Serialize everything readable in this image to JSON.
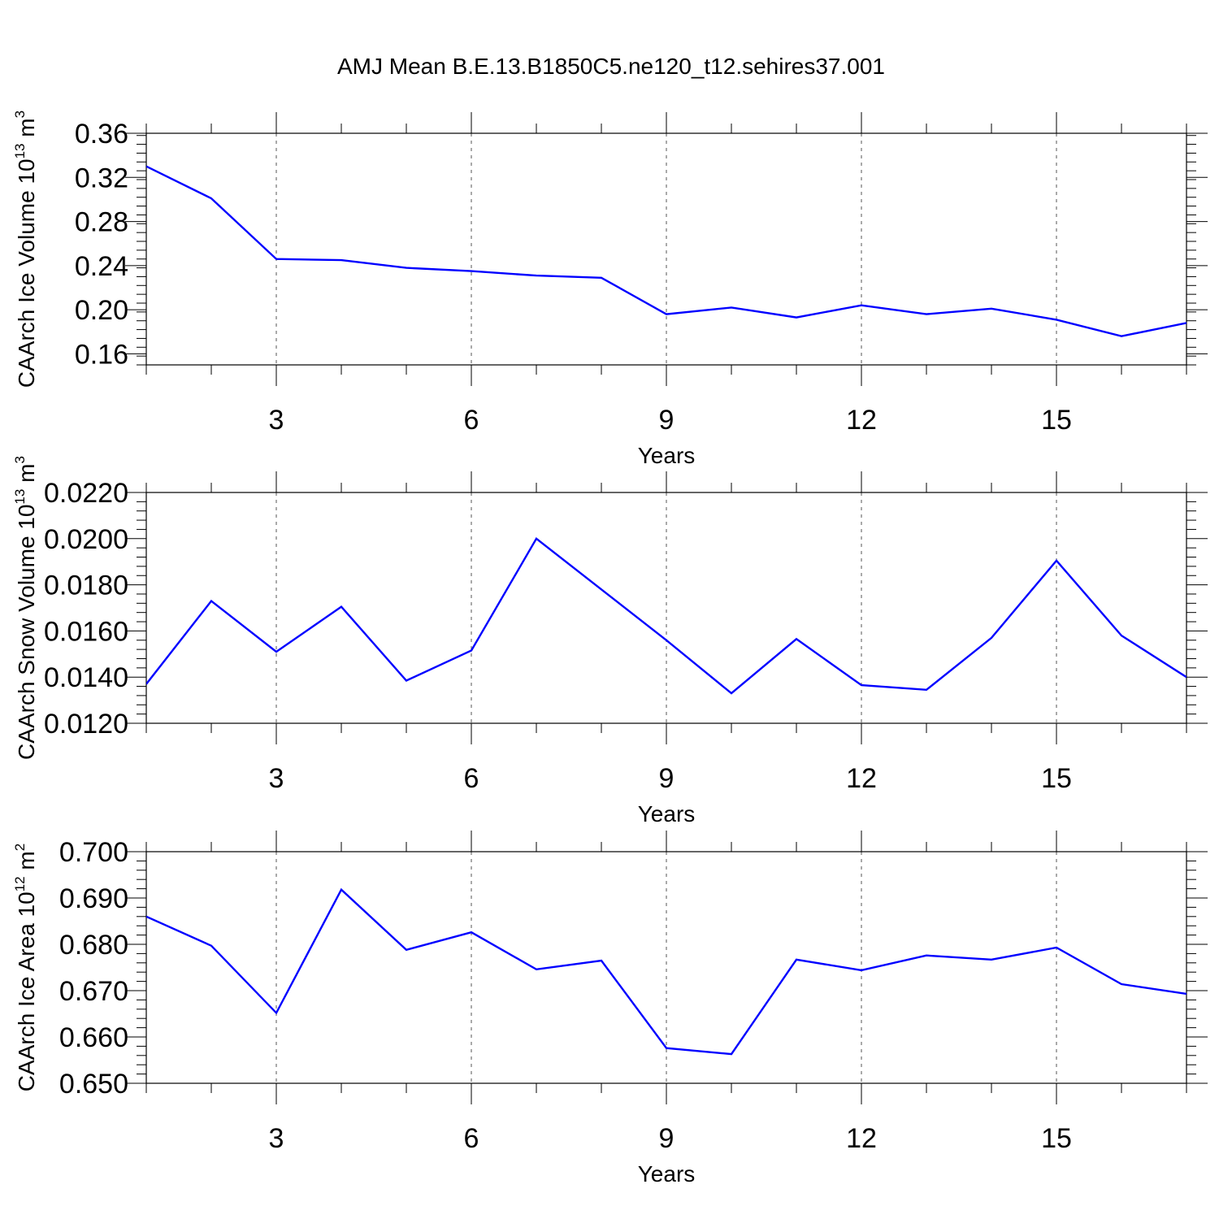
{
  "title": "AMJ Mean B.E.13.B1850C5.ne120_t12.sehires37.001",
  "colors": {
    "series": "#0000ff",
    "axis": "#000000",
    "grid": "#555555"
  },
  "chart_data": [
    {
      "type": "line",
      "title": "AMJ Mean B.E.13.B1850C5.ne120_t12.sehires37.001",
      "xlabel": "Years",
      "ylabel": {
        "text": "CAArch Ice Volume 10",
        "exp": "13",
        "unit": " m",
        "unit_exp": "3"
      },
      "xlim": [
        1,
        17
      ],
      "ylim": [
        0.15,
        0.36
      ],
      "xticks": [
        3,
        6,
        9,
        12,
        15
      ],
      "xtick_labels": [
        "3",
        "6",
        "9",
        "12",
        "15"
      ],
      "yticks": [
        0.16,
        0.2,
        0.24,
        0.28,
        0.32,
        0.36
      ],
      "ytick_labels": [
        "0.16",
        "0.20",
        "0.24",
        "0.28",
        "0.32",
        "0.36"
      ],
      "x_minor_step": 1,
      "y_minor_step": 0.008,
      "x": [
        1,
        2,
        3,
        4,
        5,
        6,
        7,
        8,
        9,
        10,
        11,
        12,
        13,
        14,
        15,
        16,
        17
      ],
      "values": [
        0.33,
        0.301,
        0.246,
        0.245,
        0.238,
        0.235,
        0.231,
        0.229,
        0.196,
        0.202,
        0.193,
        0.204,
        0.196,
        0.201,
        0.191,
        0.176,
        0.188
      ]
    },
    {
      "type": "line",
      "xlabel": "Years",
      "ylabel": {
        "text": "CAArch Snow Volume 10",
        "exp": "13",
        "unit": " m",
        "unit_exp": "3"
      },
      "xlim": [
        1,
        17
      ],
      "ylim": [
        0.012,
        0.022
      ],
      "xticks": [
        3,
        6,
        9,
        12,
        15
      ],
      "xtick_labels": [
        "3",
        "6",
        "9",
        "12",
        "15"
      ],
      "yticks": [
        0.012,
        0.014,
        0.016,
        0.018,
        0.02,
        0.022
      ],
      "ytick_labels": [
        "0.0120",
        "0.0140",
        "0.0160",
        "0.0180",
        "0.0200",
        "0.0220"
      ],
      "x_minor_step": 1,
      "y_minor_step": 0.0004,
      "x": [
        1,
        2,
        3,
        4,
        5,
        6,
        7,
        8,
        9,
        10,
        11,
        12,
        13,
        14,
        15,
        16,
        17
      ],
      "values": [
        0.0137,
        0.0173,
        0.0151,
        0.01705,
        0.01385,
        0.01515,
        0.02,
        0.0178,
        0.0156,
        0.0133,
        0.01565,
        0.01365,
        0.01345,
        0.0157,
        0.01905,
        0.0158,
        0.014
      ]
    },
    {
      "type": "line",
      "xlabel": "Years",
      "ylabel": {
        "text": "CAArch Ice Area 10",
        "exp": "12",
        "unit": " m",
        "unit_exp": "2"
      },
      "xlim": [
        1,
        17
      ],
      "ylim": [
        0.65,
        0.7
      ],
      "xticks": [
        3,
        6,
        9,
        12,
        15
      ],
      "xtick_labels": [
        "3",
        "6",
        "9",
        "12",
        "15"
      ],
      "yticks": [
        0.65,
        0.66,
        0.67,
        0.68,
        0.69,
        0.7
      ],
      "ytick_labels": [
        "0.650",
        "0.660",
        "0.670",
        "0.680",
        "0.690",
        "0.700"
      ],
      "x_minor_step": 1,
      "y_minor_step": 0.002,
      "x": [
        1,
        2,
        3,
        4,
        5,
        6,
        7,
        8,
        9,
        10,
        11,
        12,
        13,
        14,
        15,
        16,
        17
      ],
      "values": [
        0.686,
        0.6797,
        0.6652,
        0.6918,
        0.6788,
        0.6826,
        0.6746,
        0.6765,
        0.6576,
        0.6563,
        0.6767,
        0.6744,
        0.6776,
        0.6767,
        0.6793,
        0.6714,
        0.6693
      ]
    }
  ]
}
